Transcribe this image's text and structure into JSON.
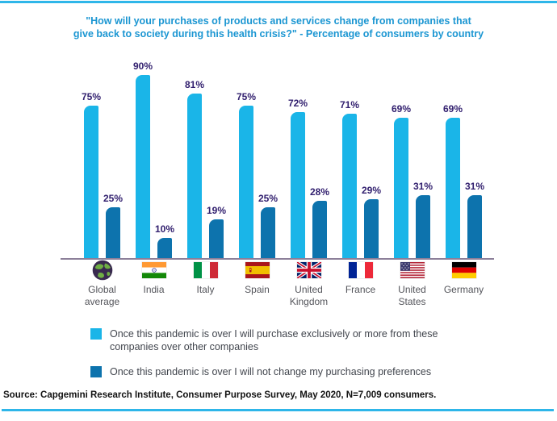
{
  "title": {
    "line1": "\"How will your purchases of products and services change from companies that",
    "line2": "give back to society during this health crisis?\" - Percentage of consumers by country"
  },
  "chart_data": {
    "type": "bar",
    "categories": [
      "Global average",
      "India",
      "Italy",
      "Spain",
      "United Kingdom",
      "France",
      "United States",
      "Germany"
    ],
    "flags": [
      "globe",
      "india",
      "italy",
      "spain",
      "uk",
      "france",
      "usa",
      "germany"
    ],
    "series": [
      {
        "name": "Once this pandemic is over I will purchase exclusively or more from these companies over other companies",
        "color": "#1ab5e8",
        "values": [
          75,
          90,
          81,
          75,
          72,
          71,
          69,
          69
        ]
      },
      {
        "name": "Once this pandemic is over I will not change my purchasing preferences",
        "color": "#0d73ad",
        "values": [
          25,
          10,
          19,
          25,
          28,
          29,
          31,
          31
        ]
      }
    ],
    "value_suffix": "%",
    "ylim": [
      0,
      100
    ],
    "grid": false,
    "legend_position": "bottom",
    "xlabel": "",
    "ylabel": ""
  },
  "source": "Source: Capgemini Research Institute, Consumer Purpose Survey, May 2020, N=7,009 consumers.",
  "colors": {
    "title_blue": "#1b96d2",
    "bar_light": "#1ab5e8",
    "bar_dark": "#0d73ad",
    "value_label_purple": "#32206f",
    "axis_line": "#8c7f99",
    "country_label_gray": "#54555b",
    "legend_text_gray": "#41454d",
    "rule_cyan": "#2eb6e9"
  }
}
